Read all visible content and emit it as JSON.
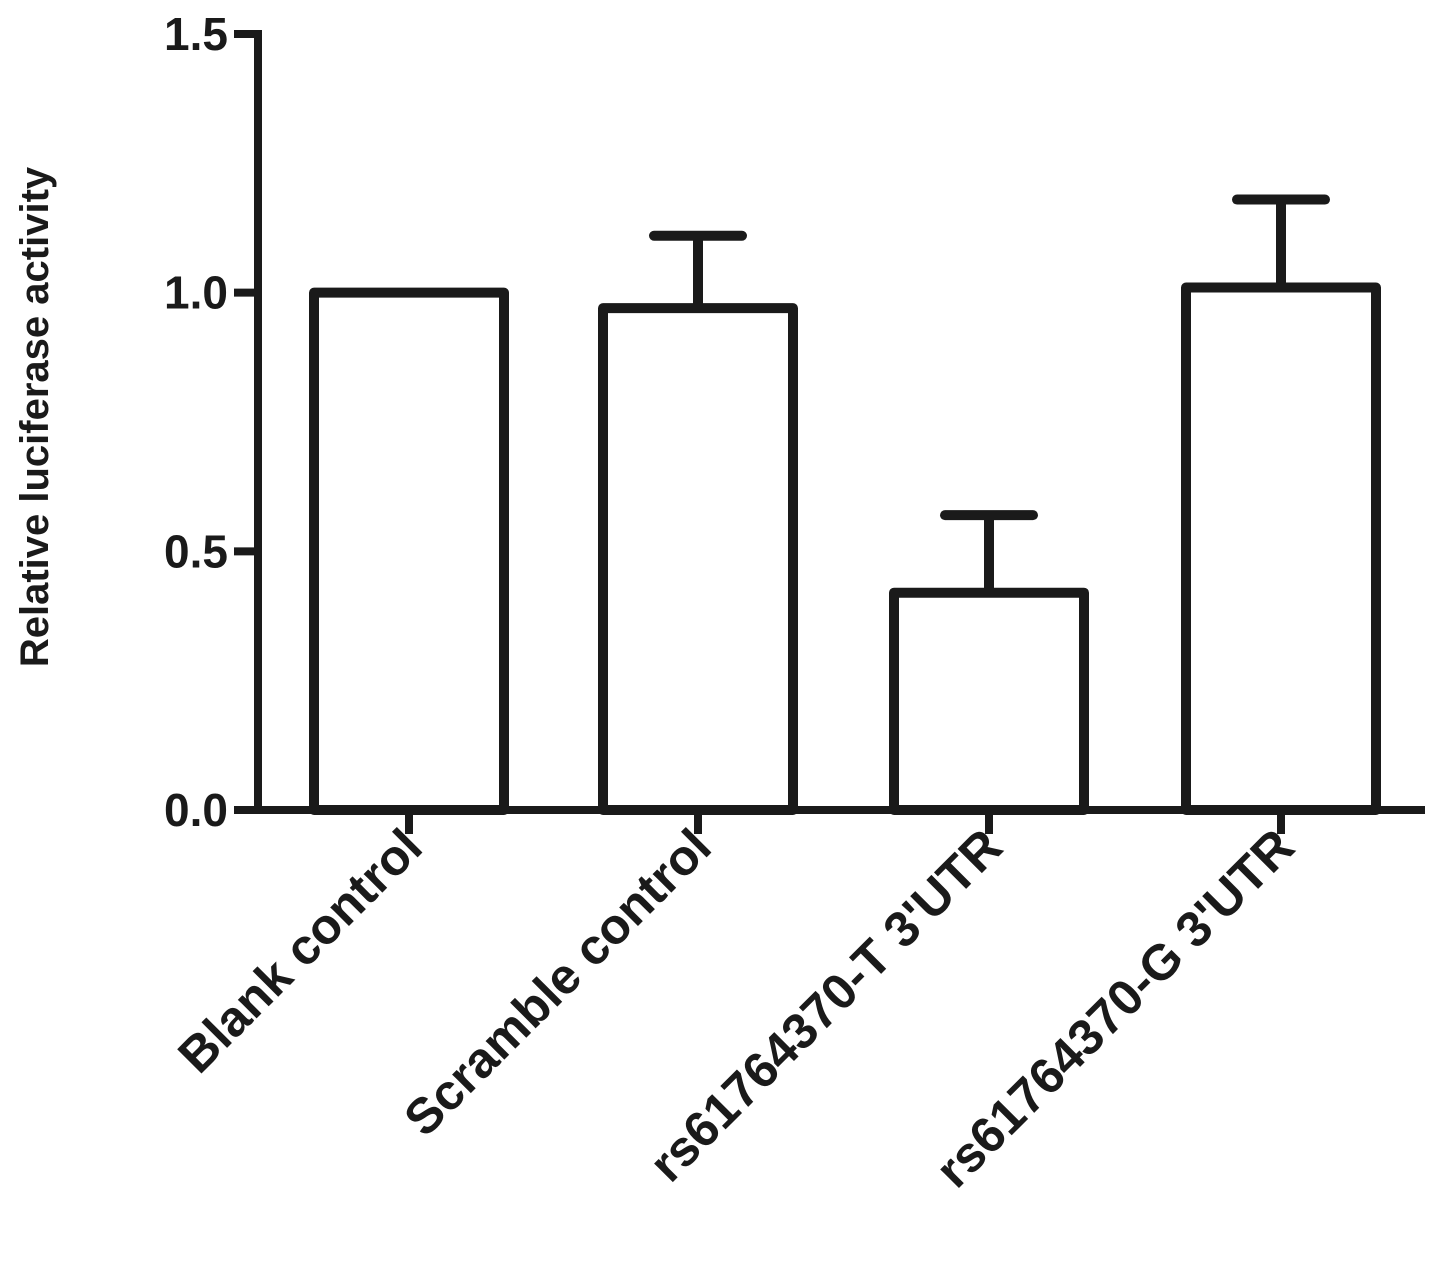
{
  "chart_data": {
    "type": "bar",
    "title": "",
    "xlabel": "",
    "ylabel": "Relative luciferase activity",
    "categories": [
      "Blank control",
      "Scramble control",
      "rs61764370-T 3'UTR",
      "rs61764370-G 3'UTR"
    ],
    "values": [
      1.0,
      0.97,
      0.42,
      1.01
    ],
    "error_upper": [
      null,
      1.11,
      0.57,
      1.18
    ],
    "ylim": [
      0,
      1.5
    ],
    "yticks": [
      0.0,
      0.5,
      1.0,
      1.5
    ],
    "ytick_labels": [
      "0.0",
      "0.5",
      "1.0",
      "1.5"
    ],
    "grid": false,
    "legend": "none",
    "bar_fill": "#ffffff",
    "bar_stroke": "#1a1a1a"
  }
}
